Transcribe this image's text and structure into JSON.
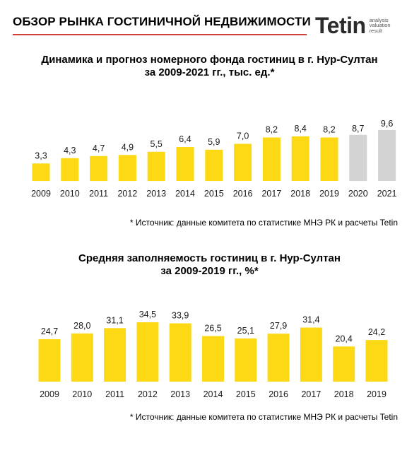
{
  "header": {
    "title": "ОБЗОР РЫНКА ГОСТИНИЧНОЙ НЕДВИЖИМОСТИ",
    "logo_word": "Tetin",
    "logo_tagline": [
      "analysis",
      "valuation",
      "result"
    ]
  },
  "colors": {
    "actual": "#fcd914",
    "forecast": "#d3d3d3",
    "accent": "#d0403a"
  },
  "chart_data": [
    {
      "type": "bar",
      "title_line1": "Динамика и прогноз номерного фонда гостиниц в г. Нур-Султан",
      "title_line2": "за 2009-2021 гг., тыс. ед.*",
      "categories": [
        "2009",
        "2010",
        "2011",
        "2012",
        "2013",
        "2014",
        "2015",
        "2016",
        "2017",
        "2018",
        "2019",
        "2020",
        "2021"
      ],
      "values": [
        3.3,
        4.3,
        4.7,
        4.9,
        5.5,
        6.4,
        5.9,
        7.0,
        8.2,
        8.4,
        8.2,
        8.7,
        9.6
      ],
      "labels": [
        "3,3",
        "4,3",
        "4,7",
        "4,9",
        "5,5",
        "6,4",
        "5,9",
        "7,0",
        "8,2",
        "8,4",
        "8,2",
        "8,7",
        "9,6"
      ],
      "forecast_categories": [
        "2020",
        "2021"
      ],
      "ylim": [
        0,
        9.6
      ],
      "source": "* Источник: данные комитета по статистике МНЭ РК и расчеты Tetin"
    },
    {
      "type": "bar",
      "title_line1": "Средняя заполняемость гостиниц в г. Нур-Султан",
      "title_line2": "за 2009-2019 гг., %*",
      "categories": [
        "2009",
        "2010",
        "2011",
        "2012",
        "2013",
        "2014",
        "2015",
        "2016",
        "2017",
        "2018",
        "2019"
      ],
      "values": [
        24.7,
        28.0,
        31.1,
        34.5,
        33.9,
        26.5,
        25.1,
        27.9,
        31.4,
        20.4,
        24.2
      ],
      "labels": [
        "24,7",
        "28,0",
        "31,1",
        "34,5",
        "33,9",
        "26,5",
        "25,1",
        "27,9",
        "31,4",
        "20,4",
        "24,2"
      ],
      "forecast_categories": [],
      "ylim": [
        0,
        34.5
      ],
      "source": "* Источник: данные комитета по статистике МНЭ РК и расчеты Tetin"
    }
  ]
}
